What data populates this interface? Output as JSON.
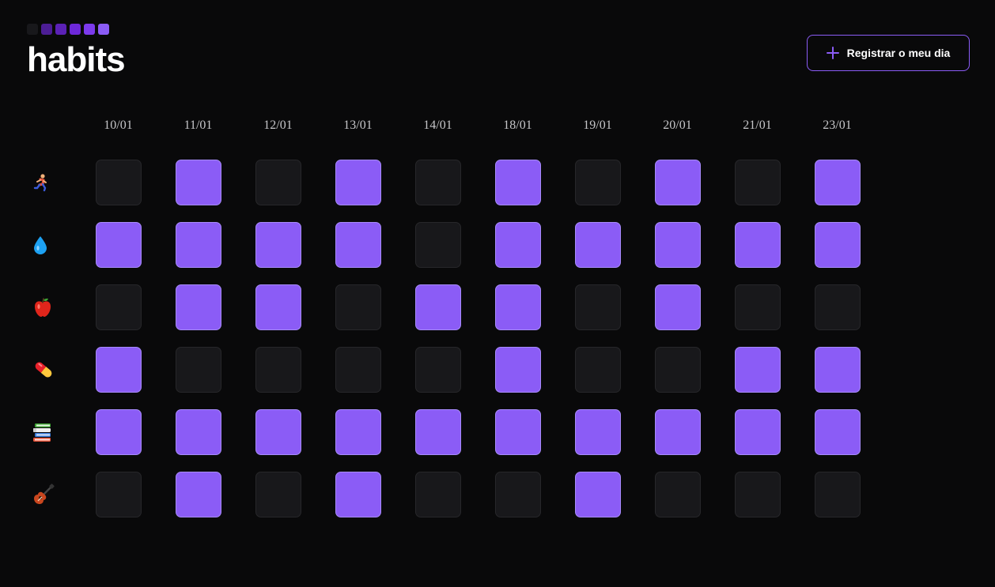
{
  "app": {
    "title": "habits",
    "logo_colors": [
      "#18181b",
      "#4c1d95",
      "#5b21b6",
      "#6d28d9",
      "#7c3aed",
      "#8b5cf6"
    ]
  },
  "header": {
    "register_button": {
      "label": "Registrar o meu dia",
      "icon": "plus-icon"
    }
  },
  "colors": {
    "completed": "#8b5cf6",
    "empty": "#18181b"
  },
  "dates": [
    "10/01",
    "11/01",
    "12/01",
    "13/01",
    "14/01",
    "18/01",
    "19/01",
    "20/01",
    "21/01",
    "23/01"
  ],
  "habits": [
    {
      "icon": "running-person-icon",
      "completed": [
        false,
        true,
        false,
        true,
        false,
        true,
        false,
        true,
        false,
        true
      ]
    },
    {
      "icon": "water-drop-icon",
      "completed": [
        true,
        true,
        true,
        true,
        false,
        true,
        true,
        true,
        true,
        true
      ]
    },
    {
      "icon": "apple-icon",
      "completed": [
        false,
        true,
        true,
        false,
        true,
        true,
        false,
        true,
        false,
        false
      ]
    },
    {
      "icon": "pill-icon",
      "completed": [
        true,
        false,
        false,
        false,
        false,
        true,
        false,
        false,
        true,
        true
      ]
    },
    {
      "icon": "books-icon",
      "completed": [
        true,
        true,
        true,
        true,
        true,
        true,
        true,
        true,
        true,
        true
      ]
    },
    {
      "icon": "guitar-icon",
      "completed": [
        false,
        true,
        false,
        true,
        false,
        false,
        true,
        false,
        false,
        false
      ]
    }
  ]
}
